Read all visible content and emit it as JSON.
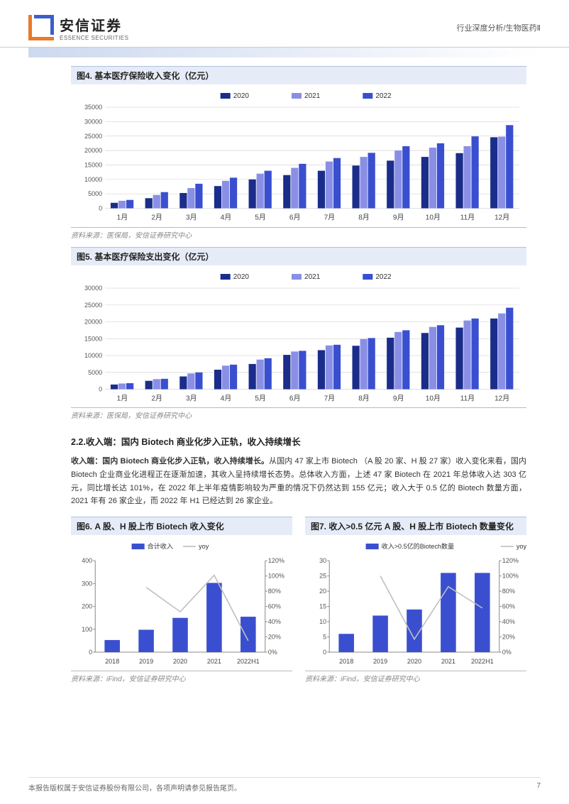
{
  "header": {
    "logo_cn": "安信证券",
    "logo_en": "ESSENCE SECURITIES",
    "breadcrumb": "行业深度分析/生物医药Ⅱ"
  },
  "chart4": {
    "type": "bar",
    "title": "图4. 基本医疗保险收入变化（亿元）",
    "categories": [
      "1月",
      "2月",
      "3月",
      "4月",
      "5月",
      "6月",
      "7月",
      "8月",
      "9月",
      "10月",
      "11月",
      "12月"
    ],
    "legend": [
      "2020",
      "2021",
      "2022"
    ],
    "series": [
      [
        1900,
        3500,
        5300,
        7700,
        10000,
        11500,
        13000,
        14800,
        16500,
        17800,
        19100,
        24600
      ],
      [
        2600,
        4600,
        7000,
        9500,
        12000,
        14000,
        16200,
        17800,
        20000,
        21000,
        21500,
        24800
      ],
      [
        2900,
        5600,
        8500,
        10600,
        13000,
        15400,
        17400,
        19200,
        21500,
        22500,
        24900,
        28800
      ]
    ],
    "colors": [
      "#1a2d8a",
      "#8a8fe6",
      "#3a4fcf"
    ],
    "ylim": [
      0,
      35000
    ],
    "ytick_step": 5000,
    "bg": "#ffffff",
    "grid": "#d4d4d4",
    "font_size": 10,
    "source": "资料来源：医保局，安信证券研究中心"
  },
  "chart5": {
    "type": "bar",
    "title": "图5. 基本医疗保险支出变化（亿元）",
    "categories": [
      "1月",
      "2月",
      "3月",
      "4月",
      "5月",
      "6月",
      "7月",
      "8月",
      "9月",
      "10月",
      "11月",
      "12月"
    ],
    "legend": [
      "2020",
      "2021",
      "2022"
    ],
    "series": [
      [
        1400,
        2500,
        3800,
        5800,
        7500,
        10200,
        11600,
        12900,
        15300,
        16700,
        18300,
        21000
      ],
      [
        1700,
        3000,
        4700,
        7000,
        8800,
        11200,
        13000,
        14900,
        17000,
        18500,
        20400,
        22500
      ],
      [
        1800,
        3100,
        5000,
        7300,
        9200,
        11400,
        13200,
        15200,
        17500,
        19000,
        21000,
        24200
      ]
    ],
    "colors": [
      "#1a2d8a",
      "#8a8fe6",
      "#3a4fcf"
    ],
    "ylim": [
      0,
      30000
    ],
    "ytick_step": 5000,
    "bg": "#ffffff",
    "grid": "#d4d4d4",
    "font_size": 10,
    "source": "资料来源：医保局，安信证券研究中心"
  },
  "section22": {
    "heading": "2.2.收入端：国内 Biotech 商业化步入正轨，收入持续增长",
    "body_lead": "收入端：国内 Biotech 商业化步入正轨，收入持续增长。",
    "body": "从国内 47 家上市 Biotech （A 股 20 家、H 股 27 家）收入变化来看，国内 Biotech 企业商业化进程正在逐渐加速，其收入呈持续增长态势。总体收入方面，上述 47 家 Biotech 在 2021 年总体收入达 303 亿元，同比增长达 101%，在 2022 年上半年疫情影响较为严重的情况下仍然达到 155 亿元；收入大于 0.5 亿的 Biotech 数量方面，2021 年有 26 家企业，而 2022 年 H1 已经达到 26 家企业。"
  },
  "chart6": {
    "type": "bar-line",
    "title": "图6. A 股、H 股上市 Biotech 收入变化",
    "categories": [
      "2018",
      "2019",
      "2020",
      "2021",
      "2022H1"
    ],
    "legend": [
      "合计收入",
      "yoy"
    ],
    "bar_values": [
      53,
      98,
      150,
      303,
      155
    ],
    "bar_color": "#3a4fcf",
    "line_values": [
      null,
      85,
      53,
      101,
      15
    ],
    "line_color": "#bfbfbf",
    "y1_lim": [
      0,
      400
    ],
    "y1_step": 100,
    "y2_lim": [
      0,
      120
    ],
    "y2_step": 20,
    "y2_suffix": "%",
    "font_size": 10,
    "source": "资料来源：iFind，安信证券研究中心"
  },
  "chart7": {
    "type": "bar-line",
    "title": "图7. 收入>0.5 亿元 A 股、H 股上市 Biotech 数量变化",
    "categories": [
      "2018",
      "2019",
      "2020",
      "2021",
      "2022H1"
    ],
    "legend": [
      "收入>0.5亿的Biotech数量",
      "yoy"
    ],
    "bar_values": [
      6,
      12,
      14,
      26,
      26
    ],
    "bar_color": "#3a4fcf",
    "line_values": [
      null,
      100,
      17,
      86,
      58
    ],
    "line_color": "#bfbfbf",
    "y1_lim": [
      0,
      30
    ],
    "y1_step": 5,
    "y2_lim": [
      0,
      120
    ],
    "y2_step": 20,
    "y2_suffix": "%",
    "font_size": 10,
    "source": "资料来源：iFind，安信证券研究中心"
  },
  "footer": {
    "copyright": "本报告版权属于安信证券股份有限公司，各项声明请参见报告尾页。",
    "page": "7"
  }
}
